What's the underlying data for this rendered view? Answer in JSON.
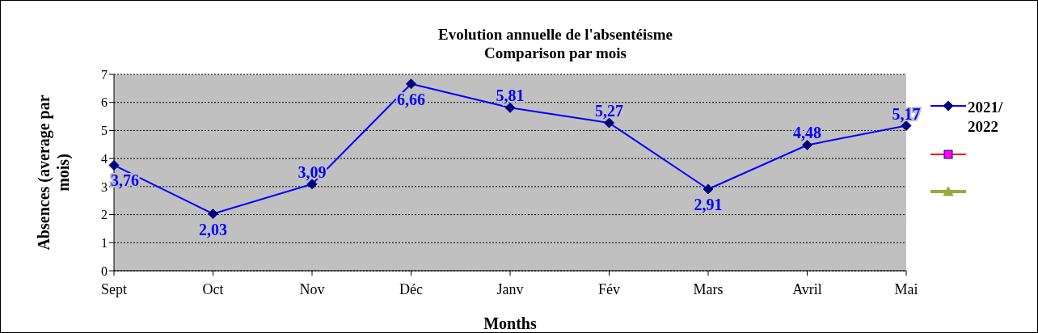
{
  "chart_data": {
    "type": "line",
    "title": "Evolution annuelle de l'absentéisme\nComparison par mois",
    "xlabel": "Months",
    "ylabel": "Absences (average par mois)",
    "categories": [
      "Sept",
      "Oct",
      "Nov",
      "Déc",
      "Janv",
      "Fév",
      "Mars",
      "Avril",
      "Mai"
    ],
    "series": [
      {
        "name": "2021/ 2022",
        "color": "#0000ff",
        "marker": "diamond",
        "values": [
          3.76,
          2.03,
          3.09,
          6.66,
          5.81,
          5.27,
          2.91,
          4.48,
          5.17
        ],
        "value_labels": [
          "3,76",
          "2,03",
          "3,09",
          "6,66",
          "5,81",
          "5,27",
          "2,91",
          "4,48",
          "5,17"
        ]
      },
      {
        "color": "#ff0000",
        "marker": "square",
        "values": [
          null,
          null,
          null,
          null,
          null,
          null,
          null,
          null,
          null
        ]
      },
      {
        "color": "#8fae3c",
        "marker": "triangle",
        "values": [
          null,
          null,
          null,
          null,
          null,
          null,
          null,
          null,
          null
        ]
      }
    ],
    "ylim": [
      0,
      7
    ],
    "yticks": [
      0,
      1,
      2,
      3,
      4,
      5,
      6,
      7
    ],
    "grid": "y",
    "legend": "right",
    "line_style": "solid"
  }
}
